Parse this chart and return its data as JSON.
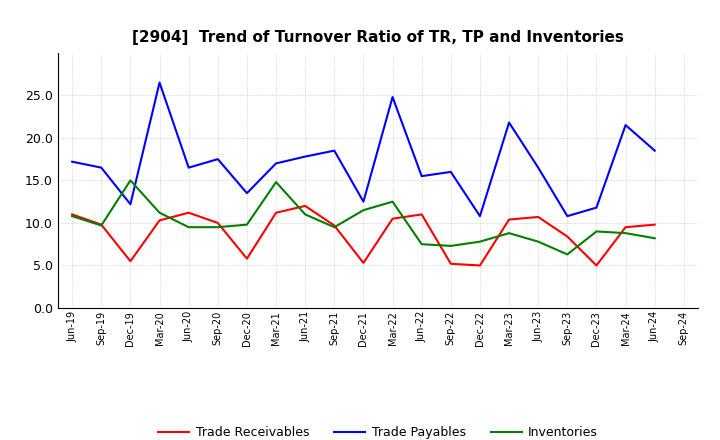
{
  "title": "[2904]  Trend of Turnover Ratio of TR, TP and Inventories",
  "x_labels": [
    "Jun-19",
    "Sep-19",
    "Dec-19",
    "Mar-20",
    "Jun-20",
    "Sep-20",
    "Dec-20",
    "Mar-21",
    "Jun-21",
    "Sep-21",
    "Dec-21",
    "Mar-22",
    "Jun-22",
    "Sep-22",
    "Dec-22",
    "Mar-23",
    "Jun-23",
    "Sep-23",
    "Dec-23",
    "Mar-24",
    "Jun-24",
    "Sep-24"
  ],
  "trade_receivables": [
    11.0,
    9.8,
    5.5,
    10.3,
    11.2,
    10.0,
    5.8,
    11.2,
    12.0,
    9.7,
    5.3,
    10.5,
    11.0,
    5.2,
    5.0,
    10.4,
    10.7,
    8.4,
    5.0,
    9.5,
    9.8,
    null
  ],
  "trade_payables": [
    17.2,
    16.5,
    12.2,
    26.5,
    16.5,
    17.5,
    13.5,
    17.0,
    17.8,
    18.5,
    12.5,
    24.8,
    15.5,
    16.0,
    10.8,
    21.8,
    16.5,
    10.8,
    11.8,
    21.5,
    18.5,
    null
  ],
  "inventories": [
    10.8,
    9.7,
    15.0,
    11.2,
    9.5,
    9.5,
    9.8,
    14.8,
    11.0,
    9.5,
    11.5,
    12.5,
    7.5,
    7.3,
    7.8,
    8.8,
    7.8,
    6.3,
    9.0,
    8.8,
    8.2,
    null
  ],
  "ylim": [
    0,
    30
  ],
  "yticks": [
    0.0,
    5.0,
    10.0,
    15.0,
    20.0,
    25.0
  ],
  "tr_color": "#ff0000",
  "tp_color": "#0000ff",
  "inv_color": "#008000",
  "legend_labels": [
    "Trade Receivables",
    "Trade Payables",
    "Inventories"
  ],
  "background_color": "#ffffff",
  "grid_color": "#999999"
}
